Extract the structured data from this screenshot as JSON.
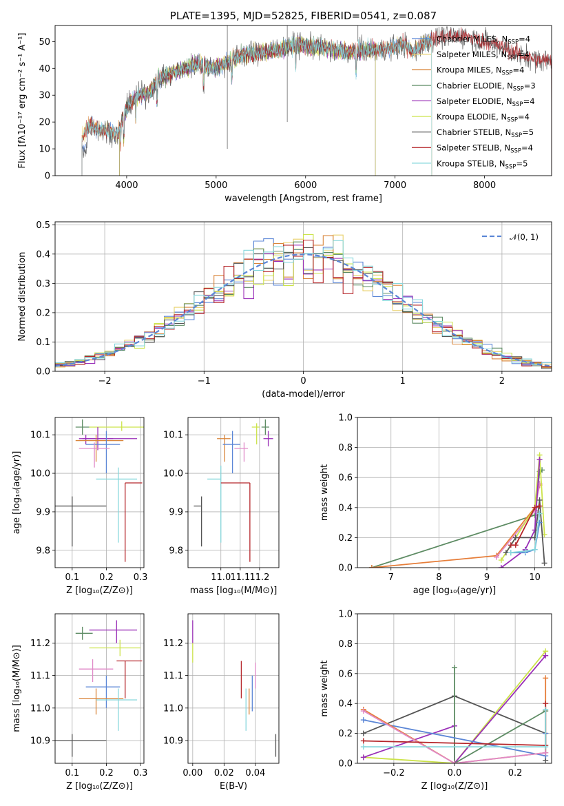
{
  "colors": {
    "cm": "#5b86d6",
    "sm": "#e8d06a",
    "km": "#d9853a",
    "ce": "#5e8c64",
    "se": "#9a30b8",
    "ke": "#cce34a",
    "cs": "#555555",
    "ss": "#b5262a",
    "ks": "#86d7dc",
    "pink": "#e08ac8",
    "orange": "#e67e3a"
  },
  "chart_data": [
    {
      "type": "line",
      "title": "PLATE=1395, MJD=52825, FIBERID=0541, z=0.087",
      "xlabel": "wavelength [Angstrom, rest frame]",
      "ylabel": "Flux [fλ10⁻¹⁷ erg cm⁻² s⁻¹ A⁻¹]",
      "xlim": [
        3200,
        8750
      ],
      "ylim": [
        0,
        56
      ],
      "xticks": [
        4000,
        5000,
        6000,
        7000,
        8000
      ],
      "yticks": [
        0,
        10,
        20,
        30,
        40,
        50
      ],
      "grid": false,
      "legend": "top-right",
      "continuum": {
        "x": [
          3500,
          3600,
          3700,
          3800,
          3900,
          3950,
          4050,
          4150,
          4250,
          4350,
          4500,
          4650,
          4800,
          4950,
          5050,
          5150,
          5300,
          5500,
          5700,
          5900,
          6100,
          6300,
          6500,
          6700,
          6900,
          7100,
          7200,
          7300,
          7400,
          7600,
          7800,
          8000,
          8200,
          8400,
          8600
        ],
        "y": [
          15,
          19,
          17,
          17,
          15,
          21,
          28,
          30,
          31,
          36,
          38,
          40,
          42,
          40,
          41,
          43,
          45,
          46,
          47,
          49,
          48,
          47,
          46,
          47,
          47,
          49,
          46,
          49,
          51,
          52,
          52,
          50,
          48,
          45,
          43
        ]
      },
      "series": [
        {
          "name": "Chabrier MILES, N",
          "nssp": "=4",
          "color_key": "cm",
          "xmin": 3500,
          "xmax": 7410
        },
        {
          "name": "Salpeter MILES, N",
          "nssp": "=4",
          "color_key": "sm",
          "xmin": 3500,
          "xmax": 7410
        },
        {
          "name": "Kroupa MILES, N",
          "nssp": "=4",
          "color_key": "km",
          "xmin": 3500,
          "xmax": 7410
        },
        {
          "name": "Chabrier ELODIE, N",
          "nssp": "=3",
          "color_key": "ce",
          "xmin": 3920,
          "xmax": 6780
        },
        {
          "name": "Salpeter ELODIE, N",
          "nssp": "=4",
          "color_key": "se",
          "xmin": 3920,
          "xmax": 6780
        },
        {
          "name": "Kroupa ELODIE, N",
          "nssp": "=4",
          "color_key": "ke",
          "xmin": 3920,
          "xmax": 6780
        },
        {
          "name": "Chabrier STELIB, N",
          "nssp": "=5",
          "color_key": "cs",
          "xmin": 3500,
          "xmax": 8750
        },
        {
          "name": "Salpeter STELIB, N",
          "nssp": "=4",
          "color_key": "ss",
          "xmin": 3500,
          "xmax": 8750
        },
        {
          "name": "Kroupa STELIB, N",
          "nssp": "=5",
          "color_key": "ks",
          "xmin": 3500,
          "xmax": 7410
        }
      ]
    },
    {
      "type": "line",
      "xlabel": "(data-model)/error",
      "ylabel": "Normed distribution",
      "xlim": [
        -2.5,
        2.5
      ],
      "ylim": [
        0,
        0.51
      ],
      "xticks": [
        -2,
        -1,
        0,
        1,
        2
      ],
      "yticks": [
        0.0,
        0.1,
        0.2,
        0.3,
        0.4,
        0.5
      ],
      "grid": true,
      "legend": "top-right",
      "legend_label": "𝒩(0, 1)",
      "bin_width": 0.1,
      "hist_colors": [
        "cm",
        "sm",
        "km",
        "ce",
        "se",
        "ke",
        "cs",
        "ss",
        "ks"
      ]
    },
    {
      "type": "scatter",
      "xlabel": "Z [log₁₀(Z/Z⊙)]",
      "ylabel": "age  [log₁₀(age/yr)]",
      "xlim": [
        0.05,
        0.31
      ],
      "ylim": [
        9.755,
        10.145
      ],
      "xticks": [
        0.1,
        0.2,
        0.3
      ],
      "xticklabels": [
        "0.1",
        "0.2",
        "0.3"
      ],
      "yticks": [
        9.8,
        9.9,
        10.0,
        10.1
      ],
      "yticklabels": [
        "9.8",
        "9.9",
        "10.0",
        "10.1"
      ],
      "grid": true,
      "points": [
        {
          "x": 0.13,
          "xlo": 0.11,
          "xhi": 0.15,
          "y": 10.12,
          "ylo": 10.1,
          "yhi": 10.14,
          "c": "ce"
        },
        {
          "x": 0.245,
          "xlo": 0.15,
          "xhi": 0.31,
          "y": 10.12,
          "ylo": 10.11,
          "yhi": 10.135,
          "c": "ke"
        },
        {
          "x": 0.14,
          "xlo": 0.12,
          "xhi": 0.22,
          "y": 10.09,
          "ylo": 10.075,
          "yhi": 10.1,
          "c": "se"
        },
        {
          "x": 0.175,
          "xlo": 0.13,
          "xhi": 0.29,
          "y": 10.09,
          "ylo": 10.06,
          "yhi": 10.12,
          "c": "se"
        },
        {
          "x": 0.17,
          "xlo": 0.11,
          "xhi": 0.25,
          "y": 10.085,
          "ylo": 10.03,
          "yhi": 10.1,
          "c": "km"
        },
        {
          "x": 0.2,
          "xlo": 0.14,
          "xhi": 0.24,
          "y": 10.075,
          "ylo": 10.0,
          "yhi": 10.11,
          "c": "cm"
        },
        {
          "x": 0.165,
          "xlo": 0.12,
          "xhi": 0.21,
          "y": 10.065,
          "ylo": 10.015,
          "yhi": 10.08,
          "c": "pink"
        },
        {
          "x": 0.235,
          "xlo": 0.17,
          "xhi": 0.29,
          "y": 9.985,
          "ylo": 9.82,
          "yhi": 10.015,
          "c": "ks"
        },
        {
          "x": 0.255,
          "xlo": 0.255,
          "xhi": 0.305,
          "y": 9.975,
          "ylo": 9.77,
          "yhi": 9.975,
          "c": "ss"
        },
        {
          "x": 0.1,
          "xlo": 0.05,
          "xhi": 0.2,
          "y": 9.915,
          "ylo": 9.81,
          "yhi": 9.94,
          "c": "cs"
        }
      ]
    },
    {
      "type": "scatter",
      "xlabel": "mass [log₁₀(M/M⊙)]",
      "xlim": [
        10.83,
        11.3
      ],
      "ylim": [
        9.755,
        10.145
      ],
      "xticks": [
        11.0,
        11.1,
        11.2
      ],
      "xticklabels": [
        "11.0",
        "11.1",
        "11.2"
      ],
      "yticks": [
        9.8,
        9.9,
        10.0,
        10.1
      ],
      "yticklabels": [
        "9.8",
        "9.9",
        "10.0",
        "10.1"
      ],
      "grid": true,
      "points": [
        {
          "x": 11.23,
          "xlo": 11.21,
          "xhi": 11.25,
          "y": 10.12,
          "ylo": 10.1,
          "yhi": 10.14,
          "c": "ce"
        },
        {
          "x": 11.185,
          "xlo": 11.16,
          "xhi": 11.2,
          "y": 10.12,
          "ylo": 10.075,
          "yhi": 10.13,
          "c": "ke"
        },
        {
          "x": 11.245,
          "xlo": 11.22,
          "xhi": 11.27,
          "y": 10.09,
          "ylo": 10.07,
          "yhi": 10.11,
          "c": "se"
        },
        {
          "x": 11.02,
          "xlo": 10.98,
          "xhi": 11.05,
          "y": 10.09,
          "ylo": 10.03,
          "yhi": 10.1,
          "c": "km"
        },
        {
          "x": 11.06,
          "xlo": 11.01,
          "xhi": 11.1,
          "y": 10.075,
          "ylo": 10.0,
          "yhi": 10.11,
          "c": "cm"
        },
        {
          "x": 11.12,
          "xlo": 11.07,
          "xhi": 11.14,
          "y": 10.065,
          "ylo": 10.03,
          "yhi": 10.08,
          "c": "pink"
        },
        {
          "x": 11.0,
          "xlo": 10.93,
          "xhi": 11.0,
          "y": 9.985,
          "ylo": 9.82,
          "yhi": 10.02,
          "c": "ks"
        },
        {
          "x": 11.15,
          "xlo": 11.0,
          "xhi": 11.15,
          "y": 9.975,
          "ylo": 9.77,
          "yhi": 9.975,
          "c": "ss"
        },
        {
          "x": 10.9,
          "xlo": 10.86,
          "xhi": 10.9,
          "y": 9.915,
          "ylo": 9.81,
          "yhi": 9.94,
          "c": "cs"
        }
      ]
    },
    {
      "type": "line",
      "xlabel": "age  [log₁₀(age/yr)]",
      "ylabel": "mass weight",
      "xlim": [
        6.3,
        10.35
      ],
      "ylim": [
        0,
        1.0
      ],
      "xticks": [
        7,
        8,
        9,
        10
      ],
      "xticklabels": [
        "7",
        "8",
        "9",
        "10"
      ],
      "yticks": [
        0.0,
        0.2,
        0.4,
        0.6,
        0.8,
        1.0
      ],
      "yticklabels": [
        "0.0",
        "0.2",
        "0.4",
        "0.6",
        "0.8",
        "1.0"
      ],
      "grid": true,
      "lines": [
        {
          "c": "ce",
          "x": [
            6.6,
            10.0,
            10.1,
            10.15
          ],
          "y": [
            0.0,
            0.35,
            0.64,
            0.65
          ]
        },
        {
          "c": "orange",
          "x": [
            6.6,
            9.2,
            10.0,
            10.1
          ],
          "y": [
            0.0,
            0.08,
            0.4,
            0.55
          ]
        },
        {
          "c": "pink",
          "x": [
            9.2,
            10.0,
            10.1
          ],
          "y": [
            0.07,
            0.38,
            0.56
          ]
        },
        {
          "c": "ke",
          "x": [
            9.3,
            10.0,
            10.1,
            10.2
          ],
          "y": [
            0.05,
            0.4,
            0.75,
            0.22
          ]
        },
        {
          "c": "se",
          "x": [
            9.3,
            9.8,
            10.0,
            10.1
          ],
          "y": [
            0.0,
            0.12,
            0.25,
            0.72
          ]
        },
        {
          "c": "cs",
          "x": [
            9.4,
            9.6,
            10.0,
            10.1,
            10.2
          ],
          "y": [
            0.1,
            0.2,
            0.2,
            0.45,
            0.03
          ]
        },
        {
          "c": "ss",
          "x": [
            9.5,
            9.6,
            10.0,
            10.1
          ],
          "y": [
            0.15,
            0.15,
            0.4,
            0.41
          ]
        },
        {
          "c": "cm",
          "x": [
            9.5,
            9.8,
            10.0,
            10.1
          ],
          "y": [
            0.1,
            0.1,
            0.12,
            0.3
          ]
        },
        {
          "c": "ks",
          "x": [
            9.5,
            9.8,
            10.0,
            10.1
          ],
          "y": [
            0.1,
            0.11,
            0.12,
            0.36
          ]
        }
      ]
    },
    {
      "type": "scatter",
      "xlabel": "Z [log₁₀(Z/Z⊙)]",
      "ylabel": "mass [log₁₀(M/M⊙)]",
      "xlim": [
        0.05,
        0.31
      ],
      "ylim": [
        10.83,
        11.29
      ],
      "xticks": [
        0.1,
        0.2,
        0.3
      ],
      "xticklabels": [
        "0.1",
        "0.2",
        "0.3"
      ],
      "yticks": [
        10.9,
        11.0,
        11.1,
        11.2
      ],
      "yticklabels": [
        "10.9",
        "11.0",
        "11.1",
        "11.2"
      ],
      "grid": true,
      "points": [
        {
          "x": 0.13,
          "xlo": 0.11,
          "xhi": 0.16,
          "y": 11.23,
          "ylo": 11.21,
          "yhi": 11.25,
          "c": "ce"
        },
        {
          "x": 0.23,
          "xlo": 0.15,
          "xhi": 0.29,
          "y": 11.24,
          "ylo": 11.2,
          "yhi": 11.27,
          "c": "se"
        },
        {
          "x": 0.24,
          "xlo": 0.15,
          "xhi": 0.3,
          "y": 11.185,
          "ylo": 11.16,
          "yhi": 11.21,
          "c": "ke"
        },
        {
          "x": 0.16,
          "xlo": 0.12,
          "xhi": 0.22,
          "y": 11.12,
          "ylo": 11.08,
          "yhi": 11.15,
          "c": "pink"
        },
        {
          "x": 0.255,
          "xlo": 0.23,
          "xhi": 0.305,
          "y": 11.145,
          "ylo": 11.03,
          "yhi": 11.145,
          "c": "ss"
        },
        {
          "x": 0.2,
          "xlo": 0.14,
          "xhi": 0.24,
          "y": 11.065,
          "ylo": 11.0,
          "yhi": 11.1,
          "c": "cm"
        },
        {
          "x": 0.17,
          "xlo": 0.12,
          "xhi": 0.25,
          "y": 11.03,
          "ylo": 10.98,
          "yhi": 11.06,
          "c": "km"
        },
        {
          "x": 0.235,
          "xlo": 0.17,
          "xhi": 0.29,
          "y": 11.025,
          "ylo": 10.93,
          "yhi": 11.06,
          "c": "ks"
        },
        {
          "x": 0.1,
          "xlo": 0.05,
          "xhi": 0.2,
          "y": 10.9,
          "ylo": 10.85,
          "yhi": 10.92,
          "c": "cs"
        }
      ]
    },
    {
      "type": "scatter",
      "xlabel": "E(B-V)",
      "xlim": [
        -0.003,
        0.055
      ],
      "ylim": [
        10.83,
        11.29
      ],
      "xticks": [
        0.0,
        0.02,
        0.04
      ],
      "xticklabels": [
        "0.00",
        "0.02",
        "0.04"
      ],
      "yticks": [
        10.9,
        11.0,
        11.1,
        11.2
      ],
      "yticklabels": [
        "10.9",
        "11.0",
        "11.1",
        "11.2"
      ],
      "grid": true,
      "points": [
        {
          "x": 0.0,
          "xlo": 0.0,
          "xhi": 0.0,
          "y": 11.23,
          "ylo": 11.2,
          "yhi": 11.27,
          "c": "se"
        },
        {
          "x": 0.0,
          "xlo": 0.0,
          "xhi": 0.0,
          "y": 11.16,
          "ylo": 11.14,
          "yhi": 11.2,
          "c": "ke"
        },
        {
          "x": 0.031,
          "xlo": 0.031,
          "xhi": 0.031,
          "y": 11.09,
          "ylo": 11.03,
          "yhi": 11.145,
          "c": "ss"
        },
        {
          "x": 0.034,
          "xlo": 0.034,
          "xhi": 0.034,
          "y": 10.97,
          "ylo": 10.93,
          "yhi": 11.06,
          "c": "ks"
        },
        {
          "x": 0.036,
          "xlo": 0.036,
          "xhi": 0.036,
          "y": 11.02,
          "ylo": 10.98,
          "yhi": 11.06,
          "c": "km"
        },
        {
          "x": 0.038,
          "xlo": 0.038,
          "xhi": 0.038,
          "y": 11.03,
          "ylo": 10.99,
          "yhi": 11.1,
          "c": "cm"
        },
        {
          "x": 0.04,
          "xlo": 0.04,
          "xhi": 0.04,
          "y": 11.1,
          "ylo": 11.06,
          "yhi": 11.14,
          "c": "pink"
        },
        {
          "x": 0.053,
          "xlo": 0.053,
          "xhi": 0.053,
          "y": 10.88,
          "ylo": 10.85,
          "yhi": 10.92,
          "c": "cs"
        }
      ]
    },
    {
      "type": "line",
      "xlabel": "Z [log₁₀(Z/Z⊙)]",
      "ylabel": "mass weight",
      "xlim": [
        -0.32,
        0.32
      ],
      "ylim": [
        0,
        1.0
      ],
      "xticks": [
        -0.2,
        0.0,
        0.2
      ],
      "xticklabels": [
        "−0.2",
        "0.0",
        "0.2"
      ],
      "yticks": [
        0.0,
        0.2,
        0.4,
        0.6,
        0.8,
        1.0
      ],
      "yticklabels": [
        "0.0",
        "0.2",
        "0.4",
        "0.6",
        "0.8",
        "1.0"
      ],
      "grid": true,
      "lines": [
        {
          "c": "cs",
          "x": [
            -0.3,
            0.0,
            0.3,
            0.3
          ],
          "y": [
            0.2,
            0.45,
            0.2,
            0.02
          ]
        },
        {
          "c": "ke",
          "x": [
            -0.3,
            0.0,
            0.3
          ],
          "y": [
            0.04,
            0.0,
            0.75
          ]
        },
        {
          "c": "se",
          "x": [
            -0.3,
            0.0,
            0.0,
            0.3
          ],
          "y": [
            0.04,
            0.25,
            0.0,
            0.72
          ]
        },
        {
          "c": "ce",
          "x": [
            0.0,
            0.0,
            0.3,
            0.3
          ],
          "y": [
            0.64,
            0.0,
            0.35,
            0.12
          ]
        },
        {
          "c": "cm",
          "x": [
            -0.3,
            0.3,
            0.3
          ],
          "y": [
            0.29,
            0.05,
            0.2
          ]
        },
        {
          "c": "orange",
          "x": [
            -0.3,
            0.0,
            0.3,
            0.3
          ],
          "y": [
            0.36,
            0.0,
            0.07,
            0.57
          ]
        },
        {
          "c": "pink",
          "x": [
            -0.3,
            0.0,
            0.3
          ],
          "y": [
            0.35,
            0.0,
            0.07
          ]
        },
        {
          "c": "ss",
          "x": [
            -0.3,
            0.3,
            0.3
          ],
          "y": [
            0.15,
            0.12,
            0.4
          ]
        },
        {
          "c": "ks",
          "x": [
            -0.3,
            0.3,
            0.3
          ],
          "y": [
            0.11,
            0.11,
            0.36
          ]
        }
      ]
    }
  ]
}
